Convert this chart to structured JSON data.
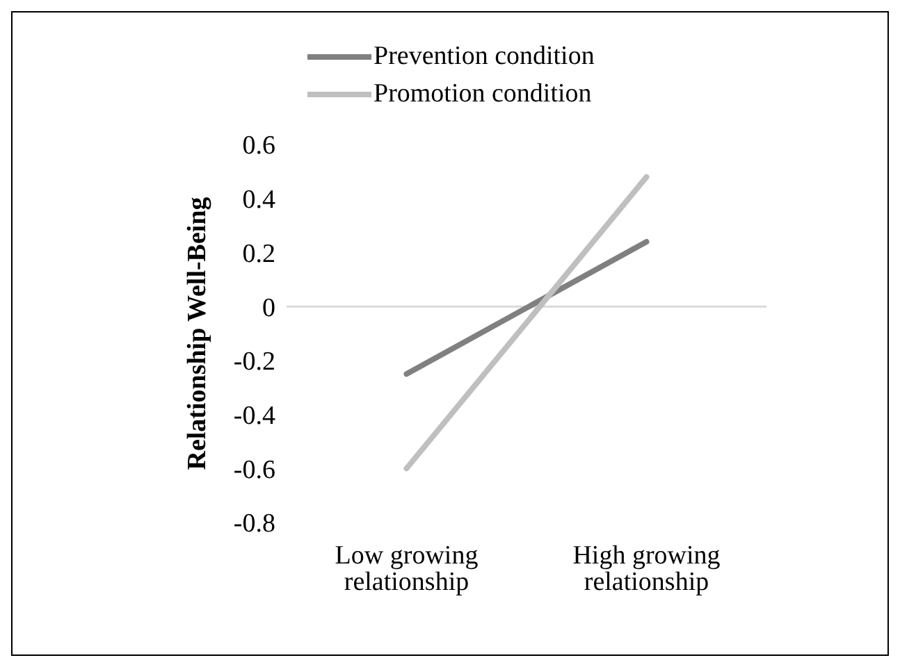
{
  "chart_data": {
    "type": "line",
    "ylabel": "Relationship Well-Being",
    "categories": [
      "Low growing relationship",
      "High growing relationship"
    ],
    "series": [
      {
        "name": "Prevention condition",
        "color": "#808080",
        "values": [
          -0.25,
          0.24
        ]
      },
      {
        "name": "Promotion condition",
        "color": "#bfbfbf",
        "values": [
          -0.6,
          0.48
        ]
      }
    ],
    "ylim": [
      -0.8,
      0.6
    ],
    "yticks": [
      -0.8,
      -0.6,
      -0.4,
      -0.2,
      0,
      0.2,
      0.4,
      0.6
    ],
    "grid": false,
    "legend": "top",
    "marker": "none",
    "line_style": "solid",
    "ref_lines": [
      {
        "axis": "y",
        "value": 0,
        "color": "#d9d9d9"
      }
    ]
  }
}
